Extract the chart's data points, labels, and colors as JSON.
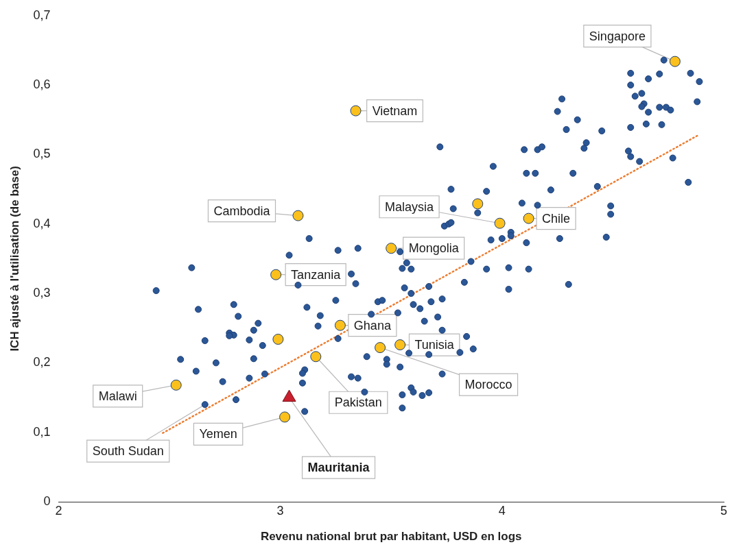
{
  "chart_data": {
    "type": "scatter",
    "xlabel": "Revenu national brut par habitant, USD en logs",
    "ylabel": "ICH ajusté à l'utilisation (de base)",
    "xlim": [
      2,
      5
    ],
    "xticks": [
      2,
      3,
      4,
      5
    ],
    "ylim": [
      0,
      0.7
    ],
    "yticks": [
      {
        "value": 0,
        "label": "0"
      },
      {
        "value": 0.1,
        "label": "0,1"
      },
      {
        "value": 0.2,
        "label": "0,2"
      },
      {
        "value": 0.3,
        "label": "0,3"
      },
      {
        "value": 0.4,
        "label": "0,4"
      },
      {
        "value": 0.5,
        "label": "0,5"
      },
      {
        "value": 0.6,
        "label": "0,6"
      },
      {
        "value": 0.7,
        "label": "0,7"
      }
    ],
    "grid": false,
    "legend": false,
    "series": [
      {
        "type": "scatter",
        "marker": "circle",
        "color": "#2b5797",
        "x": [
          3.13,
          3.26,
          3.04,
          2.6,
          2.44,
          3.08,
          2.79,
          2.63,
          2.81,
          3.25,
          3.12,
          3.18,
          2.9,
          2.88,
          2.77,
          2.79,
          2.77,
          3.17,
          2.86,
          3.26,
          2.66,
          2.92,
          2.55,
          2.88,
          2.71,
          2.62,
          3.11,
          3.1,
          2.93,
          2.86,
          2.74,
          3.1,
          2.8,
          2.66,
          3.11,
          3.35,
          3.54,
          3.57,
          3.55,
          3.59,
          3.32,
          3.34,
          3.86,
          3.95,
          4.0,
          4.04,
          4.04,
          4.11,
          3.93,
          4.03,
          4.12,
          3.56,
          3.67,
          3.59,
          3.83,
          4.03,
          3.44,
          3.46,
          3.68,
          3.73,
          3.6,
          3.63,
          3.53,
          3.41,
          3.65,
          3.71,
          3.73,
          3.84,
          3.87,
          3.39,
          3.48,
          3.48,
          3.54,
          3.58,
          3.67,
          3.81,
          3.73,
          3.32,
          3.35,
          3.38,
          3.55,
          3.59,
          3.6,
          3.64,
          3.67,
          3.55,
          3.72,
          3.96,
          4.1,
          4.16,
          4.18,
          4.29,
          4.45,
          4.38,
          4.37,
          4.11,
          4.15,
          4.32,
          4.43,
          3.77,
          3.93,
          4.22,
          3.78,
          3.89,
          4.09,
          4.16,
          4.49,
          4.49,
          3.74,
          3.76,
          3.77,
          4.26,
          4.47,
          4.3,
          4.73,
          4.58,
          4.66,
          4.71,
          4.85,
          4.89,
          4.58,
          4.6,
          4.63,
          4.88,
          4.64,
          4.63,
          4.66,
          4.71,
          4.74,
          4.76,
          4.65,
          4.72,
          4.58,
          4.27,
          4.25,
          4.34,
          4.57,
          4.58,
          4.62,
          4.77,
          4.84
        ],
        "values": [
          0.379,
          0.362,
          0.355,
          0.337,
          0.304,
          0.312,
          0.284,
          0.277,
          0.267,
          0.29,
          0.28,
          0.268,
          0.257,
          0.247,
          0.243,
          0.24,
          0.239,
          0.253,
          0.233,
          0.235,
          0.232,
          0.225,
          0.205,
          0.206,
          0.2,
          0.188,
          0.19,
          0.185,
          0.184,
          0.178,
          0.173,
          0.171,
          0.147,
          0.14,
          0.13,
          0.365,
          0.36,
          0.344,
          0.336,
          0.335,
          0.328,
          0.314,
          0.346,
          0.377,
          0.379,
          0.388,
          0.383,
          0.373,
          0.335,
          0.337,
          0.335,
          0.308,
          0.31,
          0.3,
          0.316,
          0.306,
          0.288,
          0.29,
          0.288,
          0.292,
          0.284,
          0.278,
          0.272,
          0.27,
          0.26,
          0.266,
          0.247,
          0.238,
          0.22,
          0.209,
          0.205,
          0.198,
          0.194,
          0.214,
          0.212,
          0.215,
          0.184,
          0.18,
          0.178,
          0.158,
          0.154,
          0.164,
          0.158,
          0.153,
          0.157,
          0.135,
          0.511,
          0.483,
          0.507,
          0.507,
          0.511,
          0.536,
          0.534,
          0.517,
          0.509,
          0.473,
          0.473,
          0.473,
          0.454,
          0.45,
          0.447,
          0.449,
          0.422,
          0.416,
          0.43,
          0.427,
          0.426,
          0.414,
          0.397,
          0.4,
          0.402,
          0.379,
          0.381,
          0.313,
          0.636,
          0.617,
          0.609,
          0.616,
          0.617,
          0.605,
          0.6,
          0.584,
          0.588,
          0.576,
          0.573,
          0.569,
          0.561,
          0.568,
          0.568,
          0.564,
          0.544,
          0.543,
          0.539,
          0.58,
          0.562,
          0.55,
          0.505,
          0.497,
          0.49,
          0.495,
          0.46
        ]
      },
      {
        "type": "scatter",
        "marker": "circle",
        "color": "#fbc01c",
        "x": [
          4.78,
          3.34,
          3.08,
          3.99,
          3.89,
          4.12,
          3.5,
          2.98,
          3.27,
          2.99,
          3.54,
          3.45,
          3.16,
          2.53,
          3.02
        ],
        "values": [
          0.634,
          0.563,
          0.412,
          0.401,
          0.429,
          0.408,
          0.365,
          0.327,
          0.254,
          0.234,
          0.226,
          0.222,
          0.209,
          0.168,
          0.122
        ]
      },
      {
        "type": "scatter",
        "marker": "triangle",
        "color": "#c8202e",
        "x": [
          3.04
        ],
        "values": [
          0.15
        ]
      },
      {
        "type": "line",
        "marker": "none",
        "line_style": "dotted",
        "color": "#ed7d31",
        "x": [
          2.47,
          4.88
        ],
        "values": [
          0.099,
          0.527
        ]
      }
    ],
    "annotations": [
      {
        "text": "Singapore",
        "x": 4.78,
        "y": 0.634
      },
      {
        "text": "Vietnam",
        "x": 3.34,
        "y": 0.563
      },
      {
        "text": "Cambodia",
        "x": 3.08,
        "y": 0.412
      },
      {
        "text": "Malaysia",
        "x": 3.99,
        "y": 0.401
      },
      {
        "text": "Chile",
        "x": 4.12,
        "y": 0.408
      },
      {
        "text": "Mongolia",
        "x": 3.5,
        "y": 0.365
      },
      {
        "text": "Tanzania",
        "x": 2.98,
        "y": 0.327
      },
      {
        "text": "Ghana",
        "x": 3.27,
        "y": 0.254
      },
      {
        "text": "Tunisia",
        "x": 3.54,
        "y": 0.226
      },
      {
        "text": "Morocco",
        "x": 3.45,
        "y": 0.222
      },
      {
        "text": "Pakistan",
        "x": 3.16,
        "y": 0.209
      },
      {
        "text": "Malawi",
        "x": 2.53,
        "y": 0.168
      },
      {
        "text": "South Sudan",
        "x": 2.66,
        "y": 0.14
      },
      {
        "text": "Yemen",
        "x": 3.02,
        "y": 0.122
      },
      {
        "text": "Mauritania",
        "x": 3.04,
        "y": 0.15
      }
    ]
  }
}
